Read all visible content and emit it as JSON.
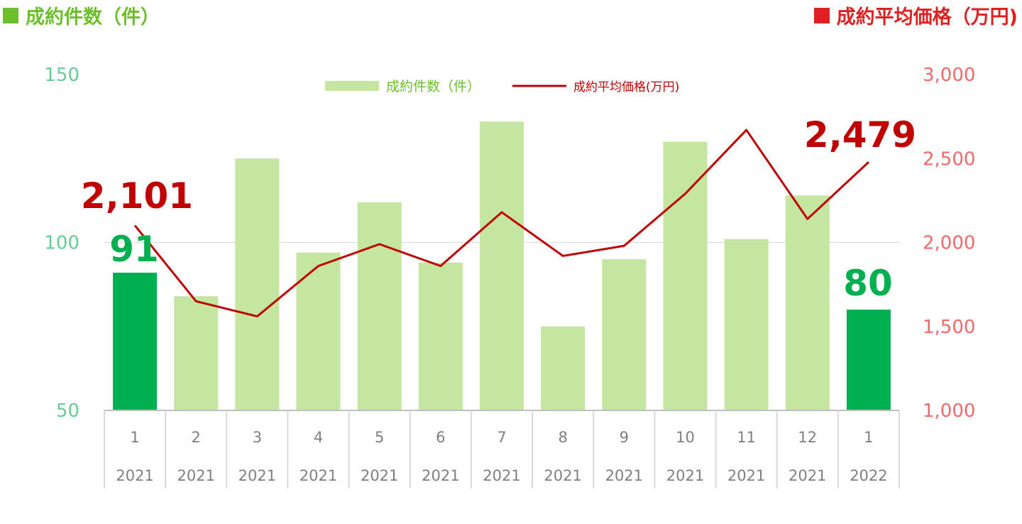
{
  "titles": {
    "left": "成約件数（件）",
    "right": "成約平均価格（万円)"
  },
  "legend": {
    "bar_label": "成約件数（件）",
    "line_label": "成約平均価格(万円)"
  },
  "colors": {
    "bar": "#c5e6a0",
    "bar_highlight": "#00b050",
    "line": "#c00000",
    "left_axis": "#66cc99",
    "right_axis": "#f06a6a",
    "left_title": "#6abf2a",
    "right_title": "#e02020"
  },
  "chart_data": {
    "type": "bar",
    "categories": [
      {
        "month": "1",
        "year": "2021"
      },
      {
        "month": "2",
        "year": "2021"
      },
      {
        "month": "3",
        "year": "2021"
      },
      {
        "month": "4",
        "year": "2021"
      },
      {
        "month": "5",
        "year": "2021"
      },
      {
        "month": "6",
        "year": "2021"
      },
      {
        "month": "7",
        "year": "2021"
      },
      {
        "month": "8",
        "year": "2021"
      },
      {
        "month": "9",
        "year": "2021"
      },
      {
        "month": "10",
        "year": "2021"
      },
      {
        "month": "11",
        "year": "2021"
      },
      {
        "month": "12",
        "year": "2021"
      },
      {
        "month": "1",
        "year": "2022"
      }
    ],
    "series": [
      {
        "name": "成約件数（件）",
        "type": "bar",
        "axis": "left",
        "values": [
          91,
          84,
          125,
          97,
          112,
          94,
          136,
          75,
          95,
          130,
          101,
          114,
          80
        ],
        "highlight": [
          0,
          12
        ]
      },
      {
        "name": "成約平均価格(万円)",
        "type": "line",
        "axis": "right",
        "values": [
          2101,
          1650,
          1560,
          1860,
          1990,
          1860,
          2180,
          1920,
          1980,
          2290,
          2670,
          2140,
          2479
        ]
      }
    ],
    "y_left": {
      "min": 50,
      "max": 150,
      "ticks": [
        "50",
        "100",
        "150"
      ]
    },
    "y_right": {
      "min": 1000,
      "max": 3000,
      "ticks": [
        "1,000",
        "1,500",
        "2,000",
        "2,500",
        "3,000"
      ]
    },
    "callouts": {
      "bar_first": "91",
      "bar_last": "80",
      "line_first": "2,101",
      "line_last": "2,479"
    },
    "grid": true,
    "legend_position": "top-center"
  }
}
